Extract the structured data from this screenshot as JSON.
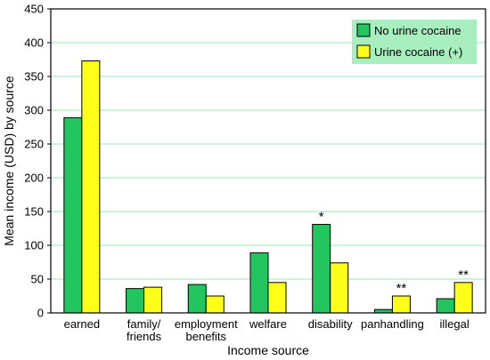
{
  "chart_data": {
    "type": "bar",
    "categories": [
      "earned",
      "family/\nfriends",
      "employment\nbenefits",
      "welfare",
      "disability",
      "panhandling",
      "illegal"
    ],
    "series": [
      {
        "name": "No urine cocaine",
        "color": "#22c55e",
        "values": [
          289,
          36,
          42,
          89,
          131,
          5,
          21
        ]
      },
      {
        "name": "Urine cocaine (+)",
        "color": "#ffff1a",
        "values": [
          373,
          38,
          25,
          45,
          74,
          25,
          45
        ]
      }
    ],
    "annotations": [
      {
        "category": "disability",
        "series": 0,
        "text": "*"
      },
      {
        "category": "panhandling",
        "series": 1,
        "text": "**"
      },
      {
        "category": "illegal",
        "series": 1,
        "text": "**"
      }
    ],
    "xlabel": "Income source",
    "ylabel": "Mean income (USD) by source",
    "ylim": [
      0,
      450
    ],
    "yticks": [
      0,
      50,
      100,
      150,
      200,
      250,
      300,
      350,
      400,
      450
    ],
    "grid": true,
    "gridColor": "#9be7b5",
    "legendPosition": "top-right",
    "legendBackground": "#a8eebf"
  }
}
